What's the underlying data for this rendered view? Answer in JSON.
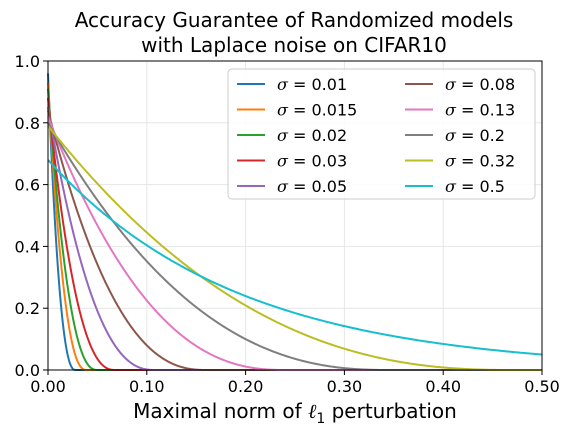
{
  "chart_data": {
    "type": "line",
    "title_lines": [
      "Accuracy Guarantee of Randomized models",
      "with Laplace noise on CIFAR10"
    ],
    "xlabel": "Maximal norm of ℓ1 perturbation",
    "xlabel_parts": {
      "prefix": "Maximal norm of ",
      "symbol": "ℓ",
      "subscript": "1",
      "suffix": " perturbation"
    },
    "ylabel": "",
    "xlim": [
      0,
      0.5
    ],
    "ylim": [
      0,
      1.0
    ],
    "x_ticks": [
      0.0,
      0.1,
      0.2,
      0.3,
      0.4,
      0.5
    ],
    "x_tick_labels": [
      "0.00",
      "0.10",
      "0.20",
      "0.30",
      "0.40",
      "0.50"
    ],
    "y_ticks": [
      0.0,
      0.2,
      0.4,
      0.6,
      0.8,
      1.0
    ],
    "y_tick_labels": [
      "0.0",
      "0.2",
      "0.4",
      "0.6",
      "0.8",
      "1.0"
    ],
    "grid": true,
    "legend_placement": "top-right",
    "legend_columns": 2,
    "series": [
      {
        "name": "σ = 0.01",
        "label_value": "0.01",
        "color": "#1f77b4",
        "y0": 0.96,
        "zero_at": 0.028
      },
      {
        "name": "σ = 0.015",
        "label_value": "0.015",
        "color": "#ff7f0e",
        "y0": 0.93,
        "zero_at": 0.039
      },
      {
        "name": "σ = 0.02",
        "label_value": "0.02",
        "color": "#2ca02c",
        "y0": 0.91,
        "zero_at": 0.05
      },
      {
        "name": "σ = 0.03",
        "label_value": "0.03",
        "color": "#d62728",
        "y0": 0.88,
        "zero_at": 0.068
      },
      {
        "name": "σ = 0.05",
        "label_value": "0.05",
        "color": "#9467bd",
        "y0": 0.85,
        "zero_at": 0.108
      },
      {
        "name": "σ = 0.08",
        "label_value": "0.08",
        "color": "#8c564b",
        "y0": 0.84,
        "zero_at": 0.16
      },
      {
        "name": "σ = 0.13",
        "label_value": "0.13",
        "color": "#e377c2",
        "y0": 0.82,
        "zero_at": 0.24
      },
      {
        "name": "σ = 0.2",
        "label_value": "0.2",
        "color": "#7f7f7f",
        "y0": 0.8,
        "zero_at": 0.345
      },
      {
        "name": "σ = 0.32",
        "label_value": "0.32",
        "color": "#bcbd22",
        "y0": 0.79,
        "zero_at": 0.47
      },
      {
        "name": "σ = 0.5",
        "label_value": "0.5",
        "color": "#17becf",
        "y0": 0.68,
        "end_value": 0.05
      }
    ]
  }
}
